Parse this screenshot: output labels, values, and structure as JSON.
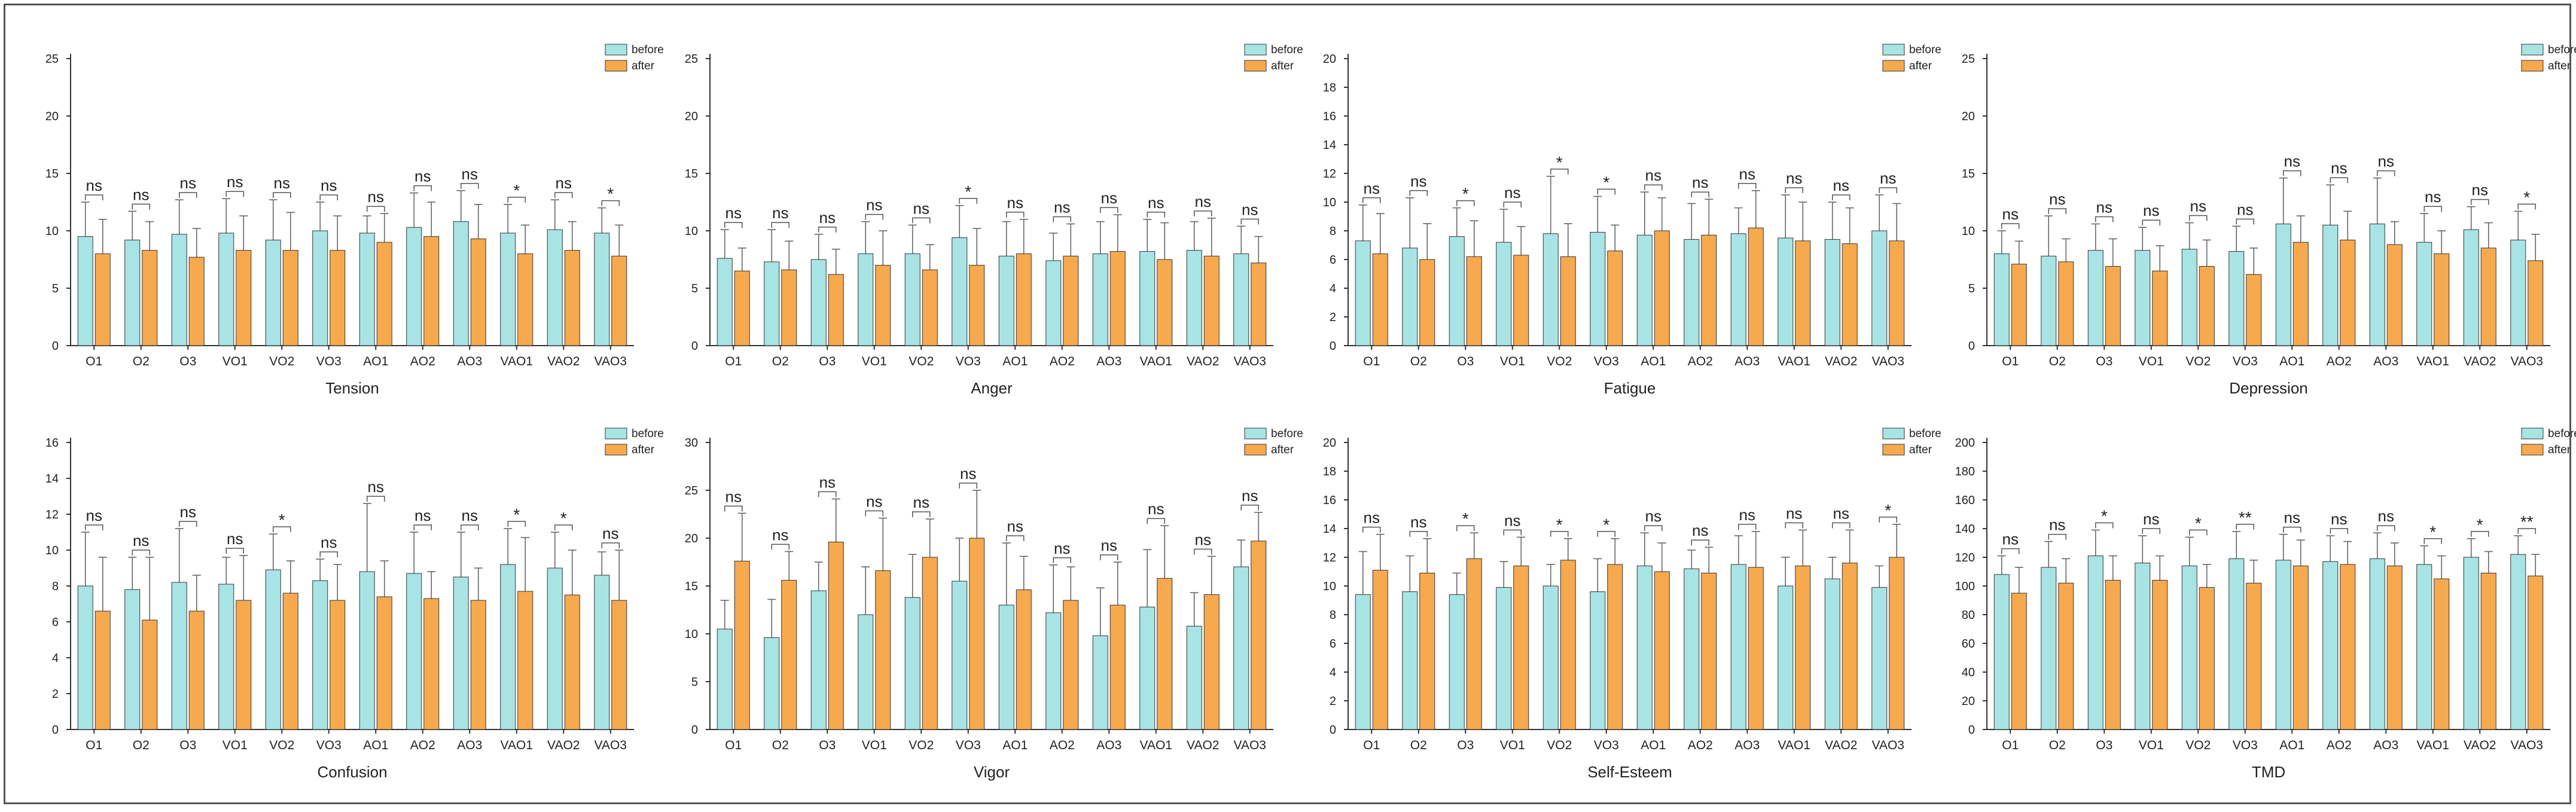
{
  "colors": {
    "before": "#a8e4e4",
    "after": "#f7a94e",
    "stroke": "#333333",
    "error": "#666666"
  },
  "legend": {
    "before": "before",
    "after": "after"
  },
  "chart_data": [
    {
      "type": "bar",
      "title": "Tension",
      "xlabel": "Tension",
      "ylim": [
        0,
        25
      ],
      "yticks": [
        0,
        5,
        10,
        15,
        20,
        25
      ],
      "categories": [
        "O1",
        "O2",
        "O3",
        "VO1",
        "VO2",
        "VO3",
        "AO1",
        "AO2",
        "AO3",
        "VAO1",
        "VAO2",
        "VAO3"
      ],
      "series": [
        {
          "name": "before",
          "values": [
            9.5,
            9.2,
            9.7,
            9.8,
            9.2,
            10.0,
            9.8,
            10.3,
            10.8,
            9.8,
            10.1,
            9.8
          ],
          "errors": [
            3.0,
            2.5,
            3.0,
            3.0,
            3.5,
            2.5,
            1.5,
            3.0,
            2.7,
            2.5,
            2.6,
            2.2
          ]
        },
        {
          "name": "after",
          "values": [
            8.0,
            8.3,
            7.7,
            8.3,
            8.3,
            8.3,
            9.0,
            9.5,
            9.3,
            8.0,
            8.3,
            7.8
          ],
          "errors": [
            3.0,
            2.5,
            2.5,
            3.0,
            3.3,
            3.0,
            2.5,
            3.0,
            3.0,
            2.5,
            2.5,
            2.7
          ]
        }
      ],
      "significance": [
        "ns",
        "ns",
        "ns",
        "ns",
        "ns",
        "ns",
        "ns",
        "ns",
        "ns",
        "*",
        "ns",
        "*"
      ]
    },
    {
      "type": "bar",
      "title": "Anger",
      "xlabel": "Anger",
      "ylim": [
        0,
        25
      ],
      "yticks": [
        0,
        5,
        10,
        15,
        20,
        25
      ],
      "categories": [
        "O1",
        "O2",
        "O3",
        "VO1",
        "VO2",
        "VO3",
        "AO1",
        "AO2",
        "AO3",
        "VAO1",
        "VAO2",
        "VAO3"
      ],
      "series": [
        {
          "name": "before",
          "values": [
            7.6,
            7.3,
            7.5,
            8.0,
            8.0,
            9.4,
            7.8,
            7.4,
            8.0,
            8.2,
            8.3,
            8.0
          ],
          "errors": [
            2.5,
            2.8,
            2.2,
            2.8,
            2.5,
            2.8,
            3.0,
            2.4,
            2.8,
            2.8,
            2.5,
            2.4
          ]
        },
        {
          "name": "after",
          "values": [
            6.5,
            6.6,
            6.2,
            7.0,
            6.6,
            7.0,
            8.0,
            7.8,
            8.2,
            7.5,
            7.8,
            7.2
          ],
          "errors": [
            2.0,
            2.5,
            2.2,
            3.0,
            2.2,
            3.2,
            3.0,
            2.8,
            3.2,
            3.2,
            3.3,
            2.3
          ]
        }
      ],
      "significance": [
        "ns",
        "ns",
        "ns",
        "ns",
        "ns",
        "*",
        "ns",
        "ns",
        "ns",
        "ns",
        "ns",
        "ns"
      ]
    },
    {
      "type": "bar",
      "title": "Fatigue",
      "xlabel": "Fatigue",
      "ylim": [
        0,
        20
      ],
      "yticks": [
        0,
        2,
        4,
        6,
        8,
        10,
        12,
        14,
        16,
        18,
        20
      ],
      "categories": [
        "O1",
        "O2",
        "O3",
        "VO1",
        "VO2",
        "VO3",
        "AO1",
        "AO2",
        "AO3",
        "VAO1",
        "VAO2",
        "VAO3"
      ],
      "series": [
        {
          "name": "before",
          "values": [
            7.3,
            6.8,
            7.6,
            7.2,
            7.8,
            7.9,
            7.7,
            7.4,
            7.8,
            7.5,
            7.4,
            8.0
          ],
          "errors": [
            2.5,
            3.5,
            2.0,
            2.3,
            4.0,
            2.5,
            3.0,
            2.5,
            1.8,
            3.0,
            2.6,
            2.5
          ]
        },
        {
          "name": "after",
          "values": [
            6.4,
            6.0,
            6.2,
            6.3,
            6.2,
            6.6,
            8.0,
            7.7,
            8.2,
            7.3,
            7.1,
            7.3
          ],
          "errors": [
            2.8,
            2.5,
            2.5,
            2.0,
            2.3,
            1.8,
            2.3,
            2.5,
            2.6,
            2.7,
            2.5,
            2.6
          ]
        }
      ],
      "significance": [
        "ns",
        "ns",
        "*",
        "ns",
        "*",
        "*",
        "ns",
        "ns",
        "ns",
        "ns",
        "ns",
        "ns"
      ]
    },
    {
      "type": "bar",
      "title": "Depression",
      "xlabel": "Depression",
      "ylim": [
        0,
        25
      ],
      "yticks": [
        0,
        5,
        10,
        15,
        20,
        25
      ],
      "categories": [
        "O1",
        "O2",
        "O3",
        "VO1",
        "VO2",
        "VO3",
        "AO1",
        "AO2",
        "AO3",
        "VAO1",
        "VAO2",
        "VAO3"
      ],
      "series": [
        {
          "name": "before",
          "values": [
            8.0,
            7.8,
            8.3,
            8.3,
            8.4,
            8.2,
            10.6,
            10.5,
            10.6,
            9.0,
            10.1,
            9.2
          ],
          "errors": [
            2.0,
            3.5,
            2.3,
            2.0,
            2.3,
            2.2,
            4.0,
            3.5,
            4.0,
            2.5,
            2.0,
            2.5
          ]
        },
        {
          "name": "after",
          "values": [
            7.1,
            7.3,
            6.9,
            6.5,
            6.9,
            6.2,
            9.0,
            9.2,
            8.8,
            8.0,
            8.5,
            7.4
          ],
          "errors": [
            2.0,
            2.0,
            2.4,
            2.2,
            2.3,
            2.3,
            2.3,
            2.5,
            2.0,
            2.0,
            2.2,
            2.3
          ]
        }
      ],
      "significance": [
        "ns",
        "ns",
        "ns",
        "ns",
        "ns",
        "ns",
        "ns",
        "ns",
        "ns",
        "ns",
        "ns",
        "*"
      ]
    },
    {
      "type": "bar",
      "title": "Confusion",
      "xlabel": "Confusion",
      "ylim": [
        0,
        16
      ],
      "yticks": [
        0,
        2,
        4,
        6,
        8,
        10,
        12,
        14,
        16
      ],
      "categories": [
        "O1",
        "O2",
        "O3",
        "VO1",
        "VO2",
        "VO3",
        "AO1",
        "AO2",
        "AO3",
        "VAO1",
        "VAO2",
        "VAO3"
      ],
      "series": [
        {
          "name": "before",
          "values": [
            8.0,
            7.8,
            8.2,
            8.1,
            8.9,
            8.3,
            8.8,
            8.7,
            8.5,
            9.2,
            9.0,
            8.6
          ],
          "errors": [
            3.0,
            1.8,
            3.0,
            1.5,
            2.0,
            1.2,
            3.8,
            2.3,
            2.5,
            2.0,
            2.0,
            1.3
          ]
        },
        {
          "name": "after",
          "values": [
            6.6,
            6.1,
            6.6,
            7.2,
            7.6,
            7.2,
            7.4,
            7.3,
            7.2,
            7.7,
            7.5,
            7.2
          ],
          "errors": [
            3.0,
            3.5,
            2.0,
            2.5,
            1.8,
            2.0,
            2.0,
            1.5,
            1.8,
            3.0,
            2.5,
            2.8
          ]
        }
      ],
      "significance": [
        "ns",
        "ns",
        "ns",
        "ns",
        "*",
        "ns",
        "ns",
        "ns",
        "ns",
        "*",
        "*",
        "ns"
      ]
    },
    {
      "type": "bar",
      "title": "Vigor",
      "xlabel": "Vigor",
      "ylim": [
        0,
        30
      ],
      "yticks": [
        0,
        5,
        10,
        15,
        20,
        25,
        30
      ],
      "categories": [
        "O1",
        "O2",
        "O3",
        "VO1",
        "VO2",
        "VO3",
        "AO1",
        "AO2",
        "AO3",
        "VAO1",
        "VAO2",
        "VAO3"
      ],
      "series": [
        {
          "name": "before",
          "values": [
            10.5,
            9.6,
            14.5,
            12.0,
            13.8,
            15.5,
            13.0,
            12.2,
            9.8,
            12.8,
            10.8,
            17.0
          ],
          "errors": [
            3.0,
            4.0,
            3.0,
            5.0,
            4.5,
            4.5,
            6.5,
            5.0,
            5.0,
            6.0,
            3.5,
            2.8
          ]
        },
        {
          "name": "after",
          "values": [
            17.6,
            15.6,
            19.6,
            16.6,
            18.0,
            20.0,
            14.6,
            13.5,
            13.0,
            15.8,
            14.1,
            19.7
          ],
          "errors": [
            5.0,
            3.0,
            4.5,
            5.5,
            4.0,
            5.0,
            3.5,
            3.5,
            4.5,
            5.5,
            4.0,
            3.0
          ]
        }
      ],
      "significance": [
        "ns",
        "ns",
        "ns",
        "ns",
        "ns",
        "ns",
        "ns",
        "ns",
        "ns",
        "ns",
        "ns",
        "ns"
      ]
    },
    {
      "type": "bar",
      "title": "Self-Esteem",
      "xlabel": "Self-Esteem",
      "ylim": [
        0,
        20
      ],
      "yticks": [
        0,
        2,
        4,
        6,
        8,
        10,
        12,
        14,
        16,
        18,
        20
      ],
      "categories": [
        "O1",
        "O2",
        "O3",
        "VO1",
        "VO2",
        "VO3",
        "AO1",
        "AO2",
        "AO3",
        "VAO1",
        "VAO2",
        "VAO3"
      ],
      "series": [
        {
          "name": "before",
          "values": [
            9.4,
            9.6,
            9.4,
            9.9,
            10.0,
            9.6,
            11.4,
            11.2,
            11.5,
            10.0,
            10.5,
            9.9
          ],
          "errors": [
            3.0,
            2.5,
            1.5,
            1.8,
            1.5,
            2.3,
            2.3,
            1.3,
            2.0,
            2.0,
            1.5,
            1.5
          ]
        },
        {
          "name": "after",
          "values": [
            11.1,
            10.9,
            11.9,
            11.4,
            11.8,
            11.5,
            11.0,
            10.9,
            11.3,
            11.4,
            11.6,
            12.0
          ],
          "errors": [
            2.5,
            2.4,
            1.8,
            2.0,
            1.5,
            1.8,
            2.0,
            1.8,
            2.5,
            2.5,
            2.3,
            2.3
          ]
        }
      ],
      "significance": [
        "ns",
        "ns",
        "*",
        "ns",
        "*",
        "*",
        "ns",
        "ns",
        "ns",
        "ns",
        "ns",
        "*"
      ]
    },
    {
      "type": "bar",
      "title": "TMD",
      "xlabel": "TMD",
      "ylim": [
        0,
        200
      ],
      "yticks": [
        0,
        20,
        40,
        60,
        80,
        100,
        120,
        140,
        160,
        180,
        200
      ],
      "categories": [
        "O1",
        "O2",
        "O3",
        "VO1",
        "VO2",
        "VO3",
        "AO1",
        "AO2",
        "AO3",
        "VAO1",
        "VAO2",
        "VAO3"
      ],
      "series": [
        {
          "name": "before",
          "values": [
            108,
            113,
            121,
            116,
            114,
            119,
            118,
            117,
            119,
            115,
            120,
            122
          ],
          "errors": [
            13,
            18,
            18,
            19,
            20,
            19,
            18,
            18,
            18,
            13,
            13,
            13
          ]
        },
        {
          "name": "after",
          "values": [
            95,
            102,
            104,
            104,
            99,
            102,
            114,
            115,
            114,
            105,
            109,
            107
          ],
          "errors": [
            18,
            17,
            17,
            17,
            16,
            16,
            18,
            16,
            16,
            16,
            15,
            15
          ]
        }
      ],
      "significance": [
        "ns",
        "ns",
        "*",
        "ns",
        "*",
        "**",
        "ns",
        "ns",
        "ns",
        "*",
        "*",
        "**"
      ]
    }
  ]
}
